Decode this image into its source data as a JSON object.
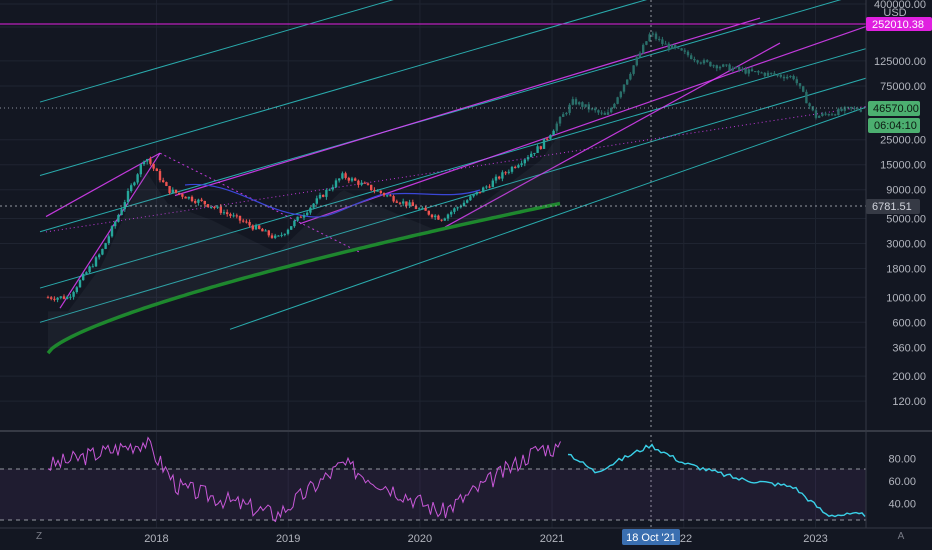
{
  "currency": "USD",
  "colors": {
    "background": "#131722",
    "grid": "#1f2431",
    "candle_up": "#26a69a",
    "candle_down": "#ef5350",
    "channel_magenta": "#e040fb",
    "channel_cyan": "#2ec4c4",
    "ma_green": "#1b8a2a",
    "rsi_line_2017": "#c858d8",
    "rsi_line_2021": "#3ad0e8",
    "label_green": "#4caf70",
    "label_magenta": "#e020e0",
    "crosshair_label": "#3a6fb0"
  },
  "price_axis": {
    "labels": [
      "400000.00",
      "250000.00",
      "125000.00",
      "75000.00",
      "25000.00",
      "15000.00",
      "9000.00",
      "5000.00",
      "3000.00",
      "1800.00",
      "1000.00",
      "600.00",
      "360.00",
      "200.00",
      "120.00"
    ],
    "highlight_resistance": "252010.38",
    "last_price": "46570.00",
    "countdown": "06:04:10",
    "crosshair_price": "6781.51"
  },
  "rsi_axis": {
    "labels": [
      "80.00",
      "60.00",
      "40.00"
    ]
  },
  "time_axis": {
    "labels": [
      "2018",
      "2019",
      "2020",
      "2021",
      "2023"
    ],
    "partial_label": "22",
    "crosshair_date": "18 Oct '21"
  },
  "corner_buttons": {
    "left": "Z",
    "right": "A"
  },
  "chart_data": [
    {
      "type": "line",
      "description_series": "price",
      "yscale": "log",
      "x": [
        "2017-05",
        "2017-08",
        "2017-12",
        "2018-02",
        "2018-06",
        "2018-12",
        "2019-06",
        "2019-10",
        "2020-03",
        "2020-07",
        "2020-12",
        "2021-03",
        "2021-06",
        "2021-10",
        "2021-11",
        "2022-03",
        "2022-07",
        "2022-11",
        "2023-01",
        "2023-04"
      ],
      "values": [
        1000,
        2500,
        18000,
        9000,
        6500,
        3300,
        12000,
        8000,
        5000,
        9500,
        22000,
        55000,
        40000,
        220000,
        180000,
        120000,
        100000,
        90000,
        40000,
        46570
      ],
      "ylim": [
        100,
        400000
      ]
    },
    {
      "type": "line",
      "description_series": "RSI",
      "x": [
        "2017-05",
        "2017-12",
        "2018-03",
        "2018-12",
        "2019-06",
        "2020-03",
        "2020-12",
        "2021-02",
        "2021-05",
        "2021-10",
        "2022-01",
        "2022-06",
        "2022-11",
        "2023-02",
        "2023-04"
      ],
      "values": [
        78,
        95,
        55,
        30,
        75,
        32,
        90,
        88,
        68,
        92,
        76,
        62,
        55,
        30,
        30
      ],
      "levels": [
        70,
        30
      ],
      "ylim": [
        20,
        100
      ]
    }
  ]
}
